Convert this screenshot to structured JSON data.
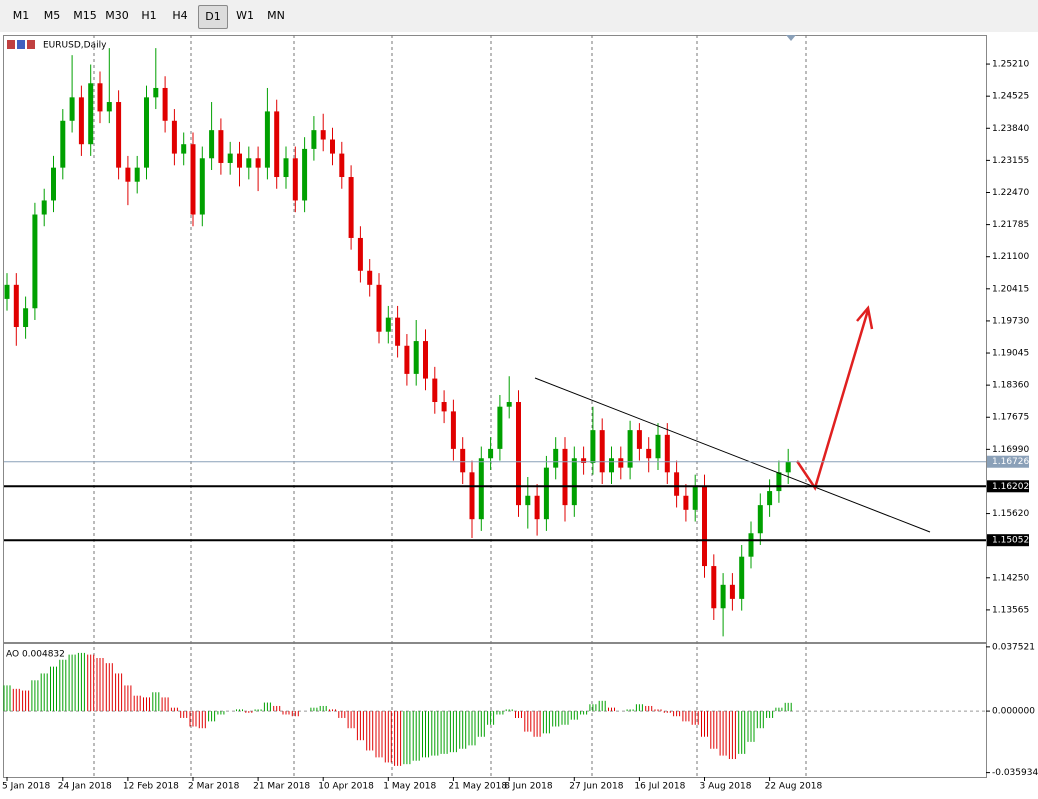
{
  "toolbar": {
    "buttons": [
      "M1",
      "M5",
      "M15",
      "M30",
      "H1",
      "H4",
      "D1",
      "W1",
      "MN"
    ]
  },
  "chart_data": {
    "type": "candlestick",
    "title": "EURUSD,Daily",
    "up_color": "#00a000",
    "down_color": "#e00000",
    "categories": [
      "5 Jan 2018",
      null,
      null,
      null,
      null,
      null,
      "24 Jan 2018",
      null,
      null,
      null,
      null,
      null,
      null,
      "12 Feb 2018",
      null,
      null,
      null,
      null,
      null,
      null,
      "2 Mar 2018",
      null,
      null,
      null,
      null,
      null,
      null,
      "21 Mar 2018",
      null,
      null,
      null,
      null,
      null,
      null,
      "10 Apr 2018",
      null,
      null,
      null,
      null,
      null,
      null,
      "1 May 2018",
      null,
      null,
      null,
      null,
      null,
      null,
      "21 May 2018",
      null,
      null,
      null,
      null,
      null,
      "8 Jun 2018",
      null,
      null,
      null,
      null,
      null,
      null,
      "27 Jun 2018",
      null,
      null,
      null,
      null,
      null,
      null,
      "16 Jul 2018",
      null,
      null,
      null,
      null,
      null,
      null,
      "3 Aug 2018",
      null,
      null,
      null,
      null,
      null,
      null,
      "22 Aug 2018",
      null,
      null
    ],
    "open": [
      1.202,
      1.205,
      1.196,
      1.2,
      1.22,
      1.223,
      1.23,
      1.24,
      1.245,
      1.235,
      1.248,
      1.242,
      1.244,
      1.23,
      1.227,
      1.23,
      1.245,
      1.247,
      1.24,
      1.233,
      1.235,
      1.22,
      1.232,
      1.238,
      1.231,
      1.233,
      1.23,
      1.232,
      1.23,
      1.242,
      1.228,
      1.232,
      1.223,
      1.234,
      1.238,
      1.236,
      1.233,
      1.228,
      1.215,
      1.208,
      1.205,
      1.195,
      1.198,
      1.192,
      1.186,
      1.193,
      1.185,
      1.18,
      1.178,
      1.17,
      1.165,
      1.155,
      1.168,
      1.17,
      1.179,
      1.18,
      1.158,
      1.16,
      1.155,
      1.166,
      1.17,
      1.158,
      1.168,
      1.167,
      1.174,
      1.165,
      1.168,
      1.166,
      1.174,
      1.17,
      1.168,
      1.173,
      1.165,
      1.16,
      1.157,
      1.162,
      1.145,
      1.136,
      1.141,
      1.138,
      1.147,
      1.152,
      1.158,
      1.161,
      1.165
    ],
    "high": [
      1.2075,
      1.2075,
      1.2025,
      1.2225,
      1.2255,
      1.2325,
      1.2425,
      1.254,
      1.2475,
      1.252,
      1.2505,
      1.2555,
      1.2465,
      1.2325,
      1.2325,
      1.2475,
      1.2555,
      1.2495,
      1.2425,
      1.2375,
      1.2375,
      1.2345,
      1.244,
      1.2405,
      1.2355,
      1.2355,
      1.2345,
      1.2345,
      1.247,
      1.2445,
      1.2345,
      1.2345,
      1.2365,
      1.241,
      1.2415,
      1.2385,
      1.2355,
      1.2305,
      1.2175,
      1.2105,
      1.2075,
      1.2005,
      1.2005,
      1.1945,
      1.1975,
      1.1955,
      1.1875,
      1.1825,
      1.1805,
      1.1725,
      1.1675,
      1.1705,
      1.1725,
      1.1815,
      1.1855,
      1.1825,
      1.164,
      1.1625,
      1.1685,
      1.1725,
      1.1725,
      1.1705,
      1.1705,
      1.179,
      1.1765,
      1.1705,
      1.1705,
      1.176,
      1.1755,
      1.1725,
      1.1755,
      1.1755,
      1.1675,
      1.1625,
      1.1645,
      1.1645,
      1.1475,
      1.1435,
      1.1435,
      1.1495,
      1.1545,
      1.1605,
      1.1635,
      1.1675,
      1.17
    ],
    "low": [
      1.1995,
      1.192,
      1.1935,
      1.1975,
      1.2175,
      1.2205,
      1.2275,
      1.2375,
      1.2325,
      1.2325,
      1.2395,
      1.2395,
      1.2275,
      1.222,
      1.2245,
      1.2275,
      1.2425,
      1.2375,
      1.2305,
      1.2305,
      1.2175,
      1.2175,
      1.2295,
      1.2285,
      1.2285,
      1.226,
      1.2275,
      1.225,
      1.2275,
      1.2255,
      1.2255,
      1.2205,
      1.2205,
      1.2315,
      1.2335,
      1.2305,
      1.2255,
      1.2125,
      1.2055,
      1.2025,
      1.1925,
      1.1925,
      1.1895,
      1.1835,
      1.1835,
      1.1825,
      1.1775,
      1.1755,
      1.1675,
      1.1625,
      1.151,
      1.1525,
      1.1655,
      1.1675,
      1.1765,
      1.1555,
      1.153,
      1.1515,
      1.1525,
      1.1635,
      1.1545,
      1.1555,
      1.1645,
      1.1645,
      1.1625,
      1.1625,
      1.1635,
      1.1635,
      1.1675,
      1.165,
      1.1655,
      1.1625,
      1.1575,
      1.1545,
      1.1545,
      1.1425,
      1.1335,
      1.13,
      1.1355,
      1.1355,
      1.1445,
      1.1495,
      1.1555,
      1.1585,
      1.1625
    ],
    "close": [
      1.205,
      1.196,
      1.2,
      1.22,
      1.223,
      1.23,
      1.24,
      1.245,
      1.235,
      1.248,
      1.242,
      1.244,
      1.23,
      1.227,
      1.23,
      1.245,
      1.247,
      1.24,
      1.233,
      1.235,
      1.22,
      1.232,
      1.238,
      1.231,
      1.233,
      1.23,
      1.232,
      1.23,
      1.242,
      1.228,
      1.232,
      1.223,
      1.234,
      1.238,
      1.236,
      1.233,
      1.228,
      1.215,
      1.208,
      1.205,
      1.195,
      1.198,
      1.192,
      1.186,
      1.193,
      1.185,
      1.18,
      1.178,
      1.17,
      1.165,
      1.155,
      1.168,
      1.17,
      1.179,
      1.18,
      1.158,
      1.16,
      1.155,
      1.166,
      1.17,
      1.158,
      1.168,
      1.167,
      1.174,
      1.165,
      1.168,
      1.166,
      1.174,
      1.17,
      1.168,
      1.173,
      1.165,
      1.16,
      1.157,
      1.162,
      1.145,
      1.136,
      1.141,
      1.138,
      1.147,
      1.152,
      1.158,
      1.161,
      1.165,
      1.1673
    ],
    "ylim": [
      1.1288,
      1.2583
    ],
    "yticks": [
      {
        "value": 1.2521,
        "label": "1.25210"
      },
      1.24525,
      {
        "value": 1.2384,
        "label": "1.23840"
      },
      1.23155,
      {
        "value": 1.2247,
        "label": "1.22470"
      },
      1.21785,
      {
        "value": 1.211,
        "label": "1.21100"
      },
      1.20415,
      {
        "value": 1.1973,
        "label": "1.19730"
      },
      1.19045,
      {
        "value": 1.1836,
        "label": "1.18360"
      },
      1.17675,
      {
        "value": 1.1699,
        "label": "1.16990"
      },
      {
        "value": 1.1562,
        "label": "1.15620"
      },
      {
        "value": 1.1425,
        "label": "1.14250"
      },
      1.13565
    ],
    "current_price": 1.16726,
    "levels": [
      1.16202,
      1.15052
    ],
    "ao": {
      "label": "AO 0.004832",
      "values": [
        0.015,
        0.013,
        0.012,
        0.018,
        0.022,
        0.026,
        0.03,
        0.033,
        0.034,
        0.033,
        0.031,
        0.028,
        0.022,
        0.015,
        0.009,
        0.008,
        0.011,
        0.008,
        0.002,
        -0.004,
        -0.009,
        -0.01,
        -0.006,
        -0.002,
        0.0,
        0.001,
        -0.001,
        0.001,
        0.005,
        0.003,
        -0.002,
        -0.003,
        0.0,
        0.002,
        0.003,
        0.001,
        -0.004,
        -0.01,
        -0.017,
        -0.023,
        -0.027,
        -0.03,
        -0.032,
        -0.031,
        -0.029,
        -0.027,
        -0.026,
        -0.025,
        -0.024,
        -0.022,
        -0.02,
        -0.015,
        -0.008,
        -0.002,
        0.001,
        -0.004,
        -0.012,
        -0.015,
        -0.013,
        -0.009,
        -0.008,
        -0.005,
        -0.002,
        0.004,
        0.006,
        0.002,
        0.0,
        0.001,
        0.004,
        0.003,
        0.001,
        -0.001,
        -0.003,
        -0.006,
        -0.008,
        -0.015,
        -0.022,
        -0.026,
        -0.028,
        -0.025,
        -0.018,
        -0.01,
        -0.004,
        0.002,
        0.004832
      ],
      "ylim": [
        -0.0385,
        0.0392
      ],
      "yticks": [
        0.037521,
        {
          "value": 0,
          "label": "0.000000"
        },
        -0.035934
      ]
    }
  }
}
